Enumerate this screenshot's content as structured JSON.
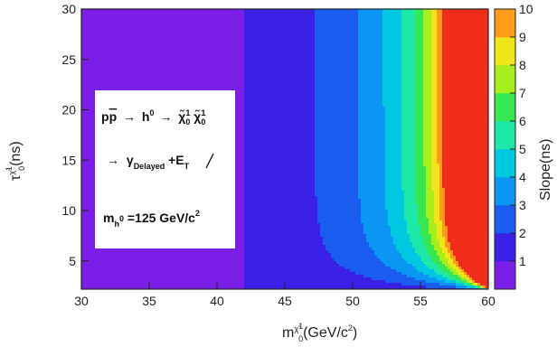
{
  "chart_data": {
    "type": "heatmap",
    "xlabel": {
      "main": "m",
      "sub_symbol": "χ̃",
      "sub_sup": "1",
      "sub_sub": "0",
      "units": "(GeV/c",
      "units_pow": "2",
      "close": ")"
    },
    "ylabel": {
      "main": "τ",
      "sub_symbol": "χ̃",
      "sub_sup": "1",
      "sub_sub": "0",
      "units": "(ns)"
    },
    "zlabel": "Slope(ns)",
    "xlim": [
      30,
      60
    ],
    "ylim": [
      2.2,
      30
    ],
    "zlim": [
      0,
      10
    ],
    "x_ticks": [
      "30",
      "35",
      "40",
      "45",
      "50",
      "55",
      "60"
    ],
    "y_ticks": [
      "5",
      "10",
      "15",
      "20",
      "25",
      "30"
    ],
    "z_ticks": [
      "1",
      "2",
      "3",
      "4",
      "5",
      "6",
      "7",
      "8",
      "9",
      "10"
    ],
    "contour_levels": [
      0,
      1,
      2,
      3,
      4,
      5,
      6,
      7,
      8,
      9,
      10
    ],
    "palette": [
      "#7b1fe8",
      "#3a1fe6",
      "#1a5cf0",
      "#0a96f2",
      "#00c8e0",
      "#1ee8a8",
      "#36e652",
      "#a8ee1e",
      "#f0e41a",
      "#ff9a1a",
      "#f02c1a"
    ],
    "annotation": {
      "line1": {
        "pp": "p",
        "ppbar": "p",
        "arrow": "→",
        "h": "h",
        "h_sup": "0",
        "chi1": "χ̃",
        "chi1_sup": "1",
        "chi1_sub": "0",
        "chi2": "χ̃",
        "chi2_sup": "1",
        "chi2_sub": "0"
      },
      "line2": {
        "arrow": "→",
        "gamma": "γ",
        "gamma_sub": "Delayed",
        "plus": "+",
        "met": "E",
        "met_sub": "T"
      },
      "line3": {
        "m": "m",
        "m_sub": "h",
        "m_sub_sup": "0",
        "value": "=125 GeV/c",
        "value_pow": "2"
      }
    }
  }
}
